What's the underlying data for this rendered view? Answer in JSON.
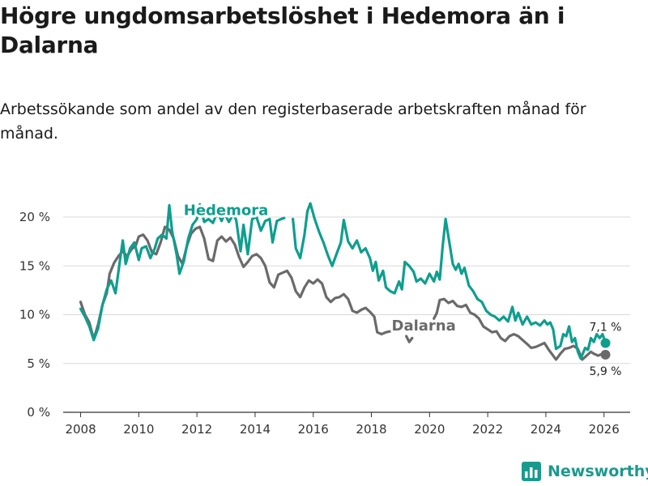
{
  "title": "Högre ungdomsarbetslöshet i Hedemora än i Dalarna",
  "subtitle": "Arbetssökande som andel av den registerbaserade arbetskraften månad för månad.",
  "brand": "Newsworthy",
  "colors": {
    "hedemora": "#0f9e8e",
    "dalarna": "#6a6a6a",
    "grid": "#d9d9d9",
    "axis": "#333333"
  },
  "chart_data": {
    "type": "line",
    "title": "Högre ungdomsarbetslöshet i Hedemora än i Dalarna",
    "xlabel": "",
    "ylabel": "",
    "xlim": [
      2007.4,
      2026.9
    ],
    "ylim": [
      0,
      20
    ],
    "x_ticks": [
      2008,
      2010,
      2012,
      2014,
      2016,
      2018,
      2020,
      2022,
      2024,
      2026
    ],
    "x_tick_labels": [
      "2008",
      "2010",
      "2012",
      "2014",
      "2016",
      "2018",
      "2020",
      "2022",
      "2024",
      "2026"
    ],
    "y_ticks": [
      0,
      5,
      10,
      15,
      20
    ],
    "y_tick_labels": [
      "0 %",
      "5 %",
      "10 %",
      "15 %",
      "20 %"
    ],
    "grid": true,
    "series": [
      {
        "name": "Hedemora",
        "label_at": [
          2013.0,
          20.2
        ],
        "end_label": "7,1 %",
        "points": [
          [
            2008.0,
            10.6
          ],
          [
            2008.15,
            9.8
          ],
          [
            2008.3,
            8.8
          ],
          [
            2008.45,
            7.4
          ],
          [
            2008.6,
            8.6
          ],
          [
            2008.75,
            11.0
          ],
          [
            2008.9,
            12.6
          ],
          [
            2009.05,
            13.5
          ],
          [
            2009.2,
            12.2
          ],
          [
            2009.35,
            15.5
          ],
          [
            2009.45,
            17.6
          ],
          [
            2009.55,
            15.2
          ],
          [
            2009.7,
            16.8
          ],
          [
            2009.85,
            17.4
          ],
          [
            2010.0,
            15.6
          ],
          [
            2010.1,
            16.8
          ],
          [
            2010.25,
            17.0
          ],
          [
            2010.4,
            15.8
          ],
          [
            2010.55,
            16.8
          ],
          [
            2010.65,
            17.8
          ],
          [
            2010.8,
            18.2
          ],
          [
            2010.95,
            17.8
          ],
          [
            2011.05,
            21.2
          ],
          [
            2011.15,
            18.5
          ],
          [
            2011.3,
            16.2
          ],
          [
            2011.4,
            14.2
          ],
          [
            2011.55,
            15.5
          ],
          [
            2011.7,
            17.8
          ],
          [
            2011.85,
            19.2
          ],
          [
            2012.0,
            19.8
          ],
          [
            2012.1,
            21.3
          ],
          [
            2012.25,
            19.5
          ],
          [
            2012.4,
            19.8
          ],
          [
            2012.55,
            19.4
          ],
          [
            2012.7,
            20.5
          ],
          [
            2012.85,
            19.6
          ],
          [
            2012.95,
            20.4
          ],
          [
            2013.1,
            19.5
          ],
          [
            2013.25,
            20.3
          ],
          [
            2013.35,
            19.7
          ],
          [
            2013.5,
            16.5
          ],
          [
            2013.6,
            19.2
          ],
          [
            2013.75,
            16.2
          ],
          [
            2013.9,
            19.8
          ],
          [
            2014.05,
            20.0
          ],
          [
            2014.2,
            18.6
          ],
          [
            2014.35,
            19.6
          ],
          [
            2014.5,
            19.8
          ],
          [
            2014.6,
            17.4
          ],
          [
            2014.75,
            19.6
          ],
          [
            2014.9,
            19.8
          ],
          [
            2015.0,
            19.9
          ]
        ],
        "segments": [
          [
            [
              2015.3,
              19.8
            ],
            [
              2015.4,
              16.8
            ],
            [
              2015.55,
              15.8
            ],
            [
              2015.7,
              18.2
            ],
            [
              2015.8,
              20.6
            ],
            [
              2015.9,
              21.4
            ],
            [
              2016.05,
              19.8
            ],
            [
              2016.2,
              18.5
            ],
            [
              2016.35,
              17.4
            ],
            [
              2016.5,
              16.1
            ],
            [
              2016.65,
              15.0
            ],
            [
              2016.8,
              16.2
            ],
            [
              2016.95,
              17.4
            ],
            [
              2017.05,
              19.7
            ],
            [
              2017.2,
              17.5
            ],
            [
              2017.35,
              16.8
            ],
            [
              2017.5,
              17.6
            ],
            [
              2017.65,
              16.4
            ],
            [
              2017.8,
              16.8
            ],
            [
              2017.95,
              15.8
            ],
            [
              2018.05,
              14.5
            ],
            [
              2018.15,
              15.4
            ],
            [
              2018.25,
              13.5
            ],
            [
              2018.4,
              14.5
            ],
            [
              2018.5,
              12.8
            ],
            [
              2018.65,
              12.4
            ],
            [
              2018.8,
              12.2
            ],
            [
              2018.95,
              13.4
            ],
            [
              2019.05,
              12.6
            ],
            [
              2019.15,
              15.4
            ],
            [
              2019.3,
              15.0
            ],
            [
              2019.45,
              14.4
            ],
            [
              2019.55,
              13.4
            ],
            [
              2019.7,
              13.7
            ],
            [
              2019.85,
              13.2
            ],
            [
              2020.0,
              14.2
            ],
            [
              2020.15,
              13.4
            ],
            [
              2020.25,
              14.4
            ],
            [
              2020.35,
              13.6
            ],
            [
              2020.45,
              17.0
            ],
            [
              2020.55,
              19.8
            ],
            [
              2020.65,
              18.0
            ],
            [
              2020.8,
              15.2
            ],
            [
              2020.9,
              14.6
            ],
            [
              2021.0,
              15.2
            ],
            [
              2021.1,
              14.2
            ],
            [
              2021.2,
              14.8
            ],
            [
              2021.35,
              13.0
            ],
            [
              2021.5,
              12.4
            ],
            [
              2021.65,
              11.6
            ],
            [
              2021.8,
              11.3
            ],
            [
              2021.95,
              10.4
            ],
            [
              2022.1,
              10.0
            ],
            [
              2022.25,
              9.8
            ],
            [
              2022.4,
              9.4
            ],
            [
              2022.55,
              9.8
            ],
            [
              2022.7,
              9.3
            ],
            [
              2022.85,
              10.8
            ],
            [
              2022.95,
              9.4
            ],
            [
              2023.05,
              10.2
            ],
            [
              2023.2,
              9.0
            ],
            [
              2023.35,
              9.8
            ],
            [
              2023.5,
              9.0
            ],
            [
              2023.65,
              9.2
            ],
            [
              2023.8,
              8.9
            ],
            [
              2023.95,
              9.4
            ],
            [
              2024.05,
              9.0
            ],
            [
              2024.15,
              9.2
            ],
            [
              2024.25,
              8.5
            ],
            [
              2024.35,
              6.5
            ],
            [
              2024.5,
              6.8
            ],
            [
              2024.6,
              8.0
            ],
            [
              2024.7,
              7.8
            ],
            [
              2024.8,
              8.8
            ],
            [
              2024.9,
              7.2
            ],
            [
              2025.0,
              7.6
            ],
            [
              2025.1,
              6.2
            ],
            [
              2025.2,
              5.5
            ],
            [
              2025.35,
              6.6
            ],
            [
              2025.45,
              6.4
            ],
            [
              2025.55,
              7.6
            ],
            [
              2025.65,
              7.2
            ],
            [
              2025.75,
              8.0
            ],
            [
              2025.85,
              7.6
            ],
            [
              2025.95,
              8.0
            ],
            [
              2026.05,
              7.1
            ]
          ]
        ]
      },
      {
        "name": "Dalarna",
        "label_at": [
          2019.8,
          8.4
        ],
        "end_label": "5,9 %",
        "points": [
          [
            2008.0,
            11.3
          ],
          [
            2008.15,
            10.0
          ],
          [
            2008.3,
            9.2
          ],
          [
            2008.45,
            7.5
          ],
          [
            2008.6,
            9.0
          ],
          [
            2008.75,
            11.0
          ],
          [
            2008.9,
            12.2
          ],
          [
            2009.0,
            14.2
          ],
          [
            2009.15,
            15.3
          ],
          [
            2009.3,
            16.0
          ],
          [
            2009.45,
            16.5
          ],
          [
            2009.6,
            16.0
          ],
          [
            2009.75,
            16.7
          ],
          [
            2009.9,
            17.1
          ],
          [
            2010.0,
            18.0
          ],
          [
            2010.15,
            18.2
          ],
          [
            2010.3,
            17.6
          ],
          [
            2010.45,
            16.4
          ],
          [
            2010.6,
            16.2
          ],
          [
            2010.75,
            17.4
          ],
          [
            2010.9,
            19.0
          ],
          [
            2011.05,
            18.7
          ],
          [
            2011.2,
            17.8
          ],
          [
            2011.35,
            16.0
          ],
          [
            2011.5,
            15.2
          ],
          [
            2011.65,
            17.0
          ],
          [
            2011.8,
            18.3
          ],
          [
            2011.95,
            18.8
          ],
          [
            2012.1,
            19.0
          ],
          [
            2012.25,
            17.8
          ],
          [
            2012.4,
            15.7
          ],
          [
            2012.55,
            15.5
          ],
          [
            2012.7,
            17.6
          ],
          [
            2012.85,
            18.0
          ],
          [
            2013.0,
            17.5
          ],
          [
            2013.15,
            17.9
          ],
          [
            2013.3,
            17.2
          ],
          [
            2013.45,
            15.9
          ],
          [
            2013.6,
            14.9
          ],
          [
            2013.75,
            15.4
          ],
          [
            2013.9,
            16.0
          ],
          [
            2014.05,
            16.2
          ],
          [
            2014.2,
            15.8
          ],
          [
            2014.35,
            15.0
          ],
          [
            2014.5,
            13.3
          ],
          [
            2014.65,
            12.8
          ],
          [
            2014.8,
            14.1
          ],
          [
            2014.95,
            14.3
          ],
          [
            2015.1,
            14.5
          ],
          [
            2015.25,
            13.8
          ],
          [
            2015.4,
            12.4
          ],
          [
            2015.55,
            11.8
          ],
          [
            2015.7,
            12.8
          ],
          [
            2015.85,
            13.5
          ],
          [
            2016.0,
            13.2
          ],
          [
            2016.15,
            13.6
          ],
          [
            2016.3,
            13.2
          ],
          [
            2016.45,
            11.8
          ],
          [
            2016.6,
            11.3
          ],
          [
            2016.75,
            11.7
          ],
          [
            2016.9,
            11.8
          ],
          [
            2017.05,
            12.1
          ],
          [
            2017.2,
            11.6
          ],
          [
            2017.35,
            10.4
          ],
          [
            2017.5,
            10.2
          ],
          [
            2017.65,
            10.5
          ],
          [
            2017.8,
            10.7
          ],
          [
            2017.95,
            10.3
          ],
          [
            2018.1,
            9.8
          ],
          [
            2018.2,
            8.2
          ],
          [
            2018.35,
            8.0
          ],
          [
            2018.5,
            8.2
          ],
          [
            2018.65,
            8.3
          ],
          [
            2018.8,
            8.4
          ]
        ],
        "segments": [
          [
            [
              2019.2,
              7.8
            ],
            [
              2019.3,
              7.2
            ],
            [
              2019.4,
              7.6
            ]
          ],
          [
            [
              2020.15,
              9.6
            ],
            [
              2020.25,
              10.2
            ],
            [
              2020.35,
              11.5
            ],
            [
              2020.5,
              11.6
            ],
            [
              2020.65,
              11.2
            ],
            [
              2020.8,
              11.4
            ],
            [
              2020.95,
              10.9
            ],
            [
              2021.1,
              10.8
            ],
            [
              2021.25,
              11.0
            ],
            [
              2021.4,
              10.2
            ],
            [
              2021.55,
              10.0
            ],
            [
              2021.7,
              9.6
            ],
            [
              2021.85,
              8.8
            ],
            [
              2022.0,
              8.5
            ],
            [
              2022.15,
              8.2
            ],
            [
              2022.3,
              8.3
            ],
            [
              2022.45,
              7.6
            ],
            [
              2022.6,
              7.3
            ],
            [
              2022.75,
              7.8
            ],
            [
              2022.9,
              8.0
            ],
            [
              2023.05,
              7.8
            ],
            [
              2023.2,
              7.4
            ],
            [
              2023.35,
              7.0
            ],
            [
              2023.5,
              6.6
            ],
            [
              2023.65,
              6.7
            ],
            [
              2023.8,
              6.9
            ],
            [
              2023.95,
              7.1
            ],
            [
              2024.1,
              6.4
            ],
            [
              2024.25,
              5.8
            ],
            [
              2024.35,
              5.4
            ],
            [
              2024.5,
              6.0
            ],
            [
              2024.65,
              6.5
            ],
            [
              2024.8,
              6.6
            ],
            [
              2024.95,
              6.8
            ],
            [
              2025.1,
              6.5
            ],
            [
              2025.25,
              5.4
            ],
            [
              2025.4,
              5.8
            ],
            [
              2025.55,
              6.2
            ],
            [
              2025.65,
              6.0
            ],
            [
              2025.8,
              5.8
            ],
            [
              2025.95,
              6.0
            ],
            [
              2026.05,
              5.9
            ]
          ]
        ]
      }
    ]
  }
}
